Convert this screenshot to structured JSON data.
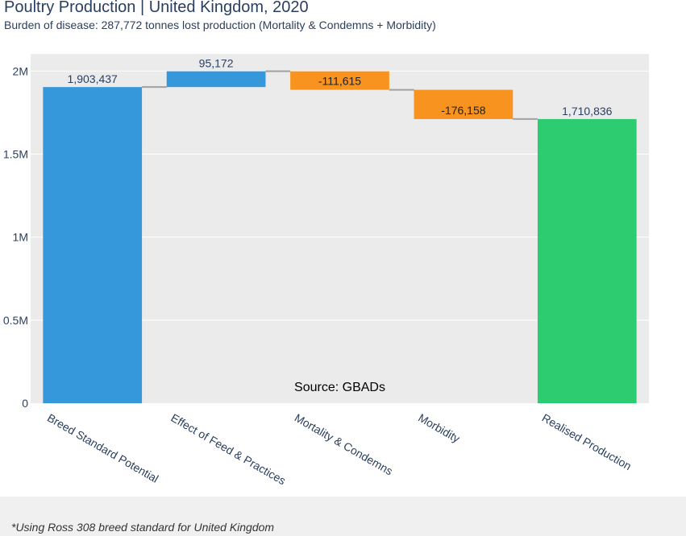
{
  "title": "Poultry Production | United Kingdom, 2020",
  "subtitle": "Burden of disease: 287,772 tonnes lost production (Mortality & Condemns + Morbidity)",
  "footnote": "*Using Ross 308 breed standard for United Kingdom",
  "colors": {
    "plot_bg": "#ebebeb",
    "total": "#3498db",
    "increase": "#3498db",
    "decrease": "#f7931e",
    "final": "#2ecc71",
    "connector": "#a0a0a0",
    "text": "#2a3f5f"
  },
  "chart_data": {
    "type": "bar",
    "subtype": "waterfall",
    "categories": [
      "Breed Standard Potential",
      "Effect of Feed & Practices",
      "Mortality & Condemns",
      "Morbidity",
      "Realised Production"
    ],
    "measures": [
      "absolute",
      "relative",
      "relative",
      "relative",
      "total"
    ],
    "values": [
      1903437,
      95172,
      -111615,
      -176158,
      1710836
    ],
    "data_labels": [
      "1,903,437",
      "95,172",
      "-111,615",
      "-176,158",
      "1,710,836"
    ],
    "y_ticks": [
      0,
      500000,
      1000000,
      1500000,
      2000000
    ],
    "y_tick_labels": [
      "0",
      "0.5M",
      "1M",
      "1.5M",
      "2M"
    ],
    "ylim": [
      0,
      2103000
    ],
    "annotation": "Source: GBADs",
    "xtick_rotation": 30,
    "grid": true,
    "legend": false
  }
}
